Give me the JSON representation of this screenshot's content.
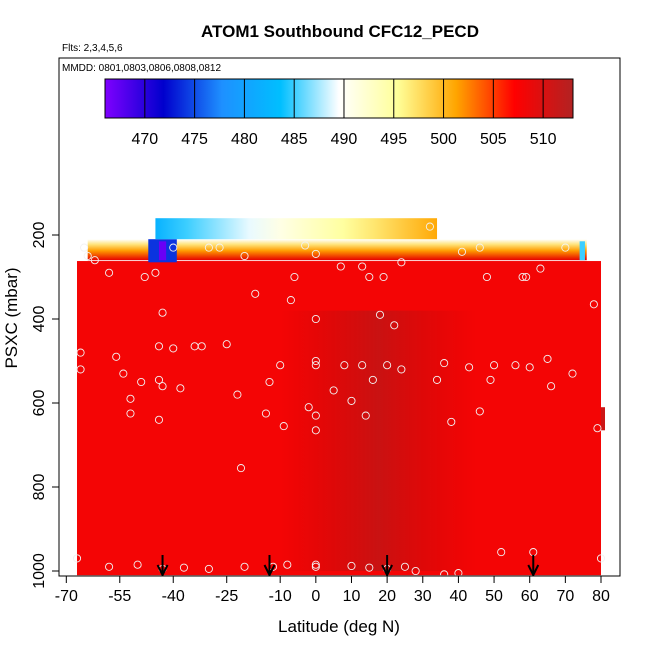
{
  "chart_data": {
    "type": "heatmap",
    "title": "ATOM1 Southbound CFC12_PECD",
    "subtitle_flights": "Flts: 2,3,4,5,6",
    "subtitle_dates": "MMDD: 0801,0803,0806,0808,0812",
    "xlabel": "Latitude (deg N)",
    "ylabel": "PSXC (mbar)",
    "xlim": [
      -70,
      82
    ],
    "ylim": [
      1020,
      70
    ],
    "y_reversed": true,
    "x_ticks": [
      -70,
      -55,
      -40,
      -25,
      -10,
      0,
      10,
      20,
      30,
      40,
      50,
      60,
      70,
      80
    ],
    "x_ticklabels": [
      "-70",
      "-55",
      "-40",
      "-25",
      "-10",
      "0",
      "10",
      "20",
      "30",
      "40",
      "50",
      "60",
      "70",
      "80"
    ],
    "y_ticks": [
      200,
      400,
      600,
      800,
      1000
    ],
    "y_ticklabels": [
      "200",
      "400",
      "600",
      "800",
      "1000"
    ],
    "colorbar": {
      "range": [
        466,
        513
      ],
      "ticks": [
        470,
        475,
        480,
        485,
        490,
        495,
        500,
        505,
        510
      ],
      "ticklabels": [
        "470",
        "475",
        "480",
        "485",
        "490",
        "495",
        "500",
        "505",
        "510"
      ],
      "colors": [
        "#7f00ff",
        "#0000cd",
        "#1e90ff",
        "#00bfff",
        "#ffffff",
        "#ffff99",
        "#ffa500",
        "#ff0000",
        "#b22222"
      ]
    },
    "background_value": 508,
    "top_band": {
      "lat_start": -45,
      "lat_end": 34,
      "p_top": 160,
      "p_bottom": 210,
      "values": [
        482,
        485,
        487,
        489,
        491,
        493,
        495,
        497,
        499,
        501
      ]
    },
    "top_edge_strip": {
      "lat_start": -64,
      "lat_end": 76,
      "p_top": 210,
      "p_bottom": 260
    },
    "data_extent": {
      "lat_start": -67,
      "lat_end": 80,
      "p_top": 215,
      "p_bottom": 1010
    },
    "arrow_latitudes": [
      -43,
      -13,
      20,
      61
    ],
    "points": [
      [
        -65,
        230
      ],
      [
        -64,
        250
      ],
      [
        -62,
        260
      ],
      [
        -66,
        480
      ],
      [
        -66,
        520
      ],
      [
        -67,
        970
      ],
      [
        -58,
        290
      ],
      [
        -56,
        490
      ],
      [
        -54,
        530
      ],
      [
        -52,
        590
      ],
      [
        -52,
        625
      ],
      [
        -49,
        550
      ],
      [
        -48,
        300
      ],
      [
        -45,
        290
      ],
      [
        -44,
        465
      ],
      [
        -44,
        545
      ],
      [
        -44,
        640
      ],
      [
        -43,
        385
      ],
      [
        -43,
        560
      ],
      [
        -40,
        470
      ],
      [
        -38,
        565
      ],
      [
        -34,
        465
      ],
      [
        -32,
        465
      ],
      [
        -30,
        230
      ],
      [
        -27,
        230
      ],
      [
        -25,
        460
      ],
      [
        -22,
        580
      ],
      [
        -21,
        755
      ],
      [
        -20,
        250
      ],
      [
        -17,
        340
      ],
      [
        -14,
        625
      ],
      [
        -13,
        550
      ],
      [
        -10,
        510
      ],
      [
        -9,
        655
      ],
      [
        -7,
        355
      ],
      [
        -6,
        300
      ],
      [
        -3,
        225
      ],
      [
        -2,
        610
      ],
      [
        0,
        245
      ],
      [
        0,
        400
      ],
      [
        0,
        500
      ],
      [
        0,
        510
      ],
      [
        0,
        630
      ],
      [
        0,
        665
      ],
      [
        5,
        570
      ],
      [
        7,
        275
      ],
      [
        8,
        510
      ],
      [
        10,
        595
      ],
      [
        13,
        275
      ],
      [
        13,
        510
      ],
      [
        14,
        630
      ],
      [
        15,
        300
      ],
      [
        16,
        545
      ],
      [
        18,
        390
      ],
      [
        19,
        300
      ],
      [
        20,
        510
      ],
      [
        22,
        415
      ],
      [
        24,
        265
      ],
      [
        24,
        520
      ],
      [
        32,
        180
      ],
      [
        34,
        545
      ],
      [
        36,
        505
      ],
      [
        38,
        645
      ],
      [
        41,
        240
      ],
      [
        43,
        515
      ],
      [
        46,
        620
      ],
      [
        46,
        230
      ],
      [
        48,
        300
      ],
      [
        49,
        545
      ],
      [
        50,
        510
      ],
      [
        52,
        955
      ],
      [
        56,
        510
      ],
      [
        58,
        300
      ],
      [
        59,
        300
      ],
      [
        60,
        515
      ],
      [
        61,
        955
      ],
      [
        63,
        280
      ],
      [
        65,
        495
      ],
      [
        66,
        560
      ],
      [
        70,
        230
      ],
      [
        72,
        530
      ],
      [
        78,
        365
      ],
      [
        79,
        660
      ],
      [
        80,
        970
      ],
      [
        -58,
        990
      ],
      [
        -50,
        985
      ],
      [
        -43,
        995
      ],
      [
        -37,
        992
      ],
      [
        -30,
        995
      ],
      [
        -20,
        990
      ],
      [
        -12,
        990
      ],
      [
        -8,
        985
      ],
      [
        0,
        990
      ],
      [
        0,
        985
      ],
      [
        10,
        988
      ],
      [
        15,
        992
      ],
      [
        20,
        995
      ],
      [
        25,
        990
      ],
      [
        28,
        1000
      ],
      [
        36,
        1008
      ],
      [
        40,
        1005
      ],
      [
        -40,
        230
      ]
    ]
  }
}
